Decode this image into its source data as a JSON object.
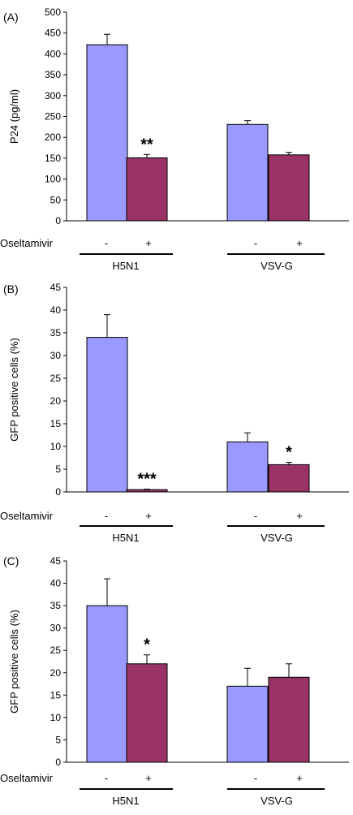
{
  "colors": {
    "minus_bar": "#9999ff",
    "plus_bar": "#993366",
    "axis": "#000000"
  },
  "chart_data": [
    {
      "type": "bar",
      "panel": "(A)",
      "ylabel": "P24 (pg/ml)",
      "ylim": [
        0,
        500
      ],
      "yticks": [
        0,
        50,
        100,
        150,
        200,
        250,
        300,
        350,
        400,
        450,
        500
      ],
      "row_label": "Oseltamivir",
      "groups": [
        "H5N1",
        "VSV-G"
      ],
      "categories": [
        "-",
        "+",
        "-",
        "+"
      ],
      "values": [
        422,
        151,
        231,
        158
      ],
      "errors": [
        25,
        8,
        9,
        6
      ],
      "significance": [
        "",
        "**",
        "",
        ""
      ]
    },
    {
      "type": "bar",
      "panel": "(B)",
      "ylabel": "GFP positive cells (%)",
      "ylim": [
        0,
        45
      ],
      "yticks": [
        0,
        5,
        10,
        15,
        20,
        25,
        30,
        35,
        40,
        45
      ],
      "row_label": "Oseltamivir",
      "groups": [
        "H5N1",
        "VSV-G"
      ],
      "categories": [
        "-",
        "+",
        "-",
        "+"
      ],
      "values": [
        34,
        0.5,
        11,
        6
      ],
      "errors": [
        5,
        0.1,
        2,
        0.5
      ],
      "significance": [
        "",
        "***",
        "",
        "*"
      ]
    },
    {
      "type": "bar",
      "panel": "(C)",
      "ylabel": "GFP positive cells (%)",
      "ylim": [
        0,
        45
      ],
      "yticks": [
        0,
        5,
        10,
        15,
        20,
        25,
        30,
        35,
        40,
        45
      ],
      "row_label": "Oseltamivir",
      "groups": [
        "H5N1",
        "VSV-G"
      ],
      "categories": [
        "-",
        "+",
        "-",
        "+"
      ],
      "values": [
        35,
        22,
        17,
        19
      ],
      "errors": [
        6,
        2,
        4,
        3
      ],
      "significance": [
        "",
        "*",
        "",
        ""
      ]
    }
  ]
}
